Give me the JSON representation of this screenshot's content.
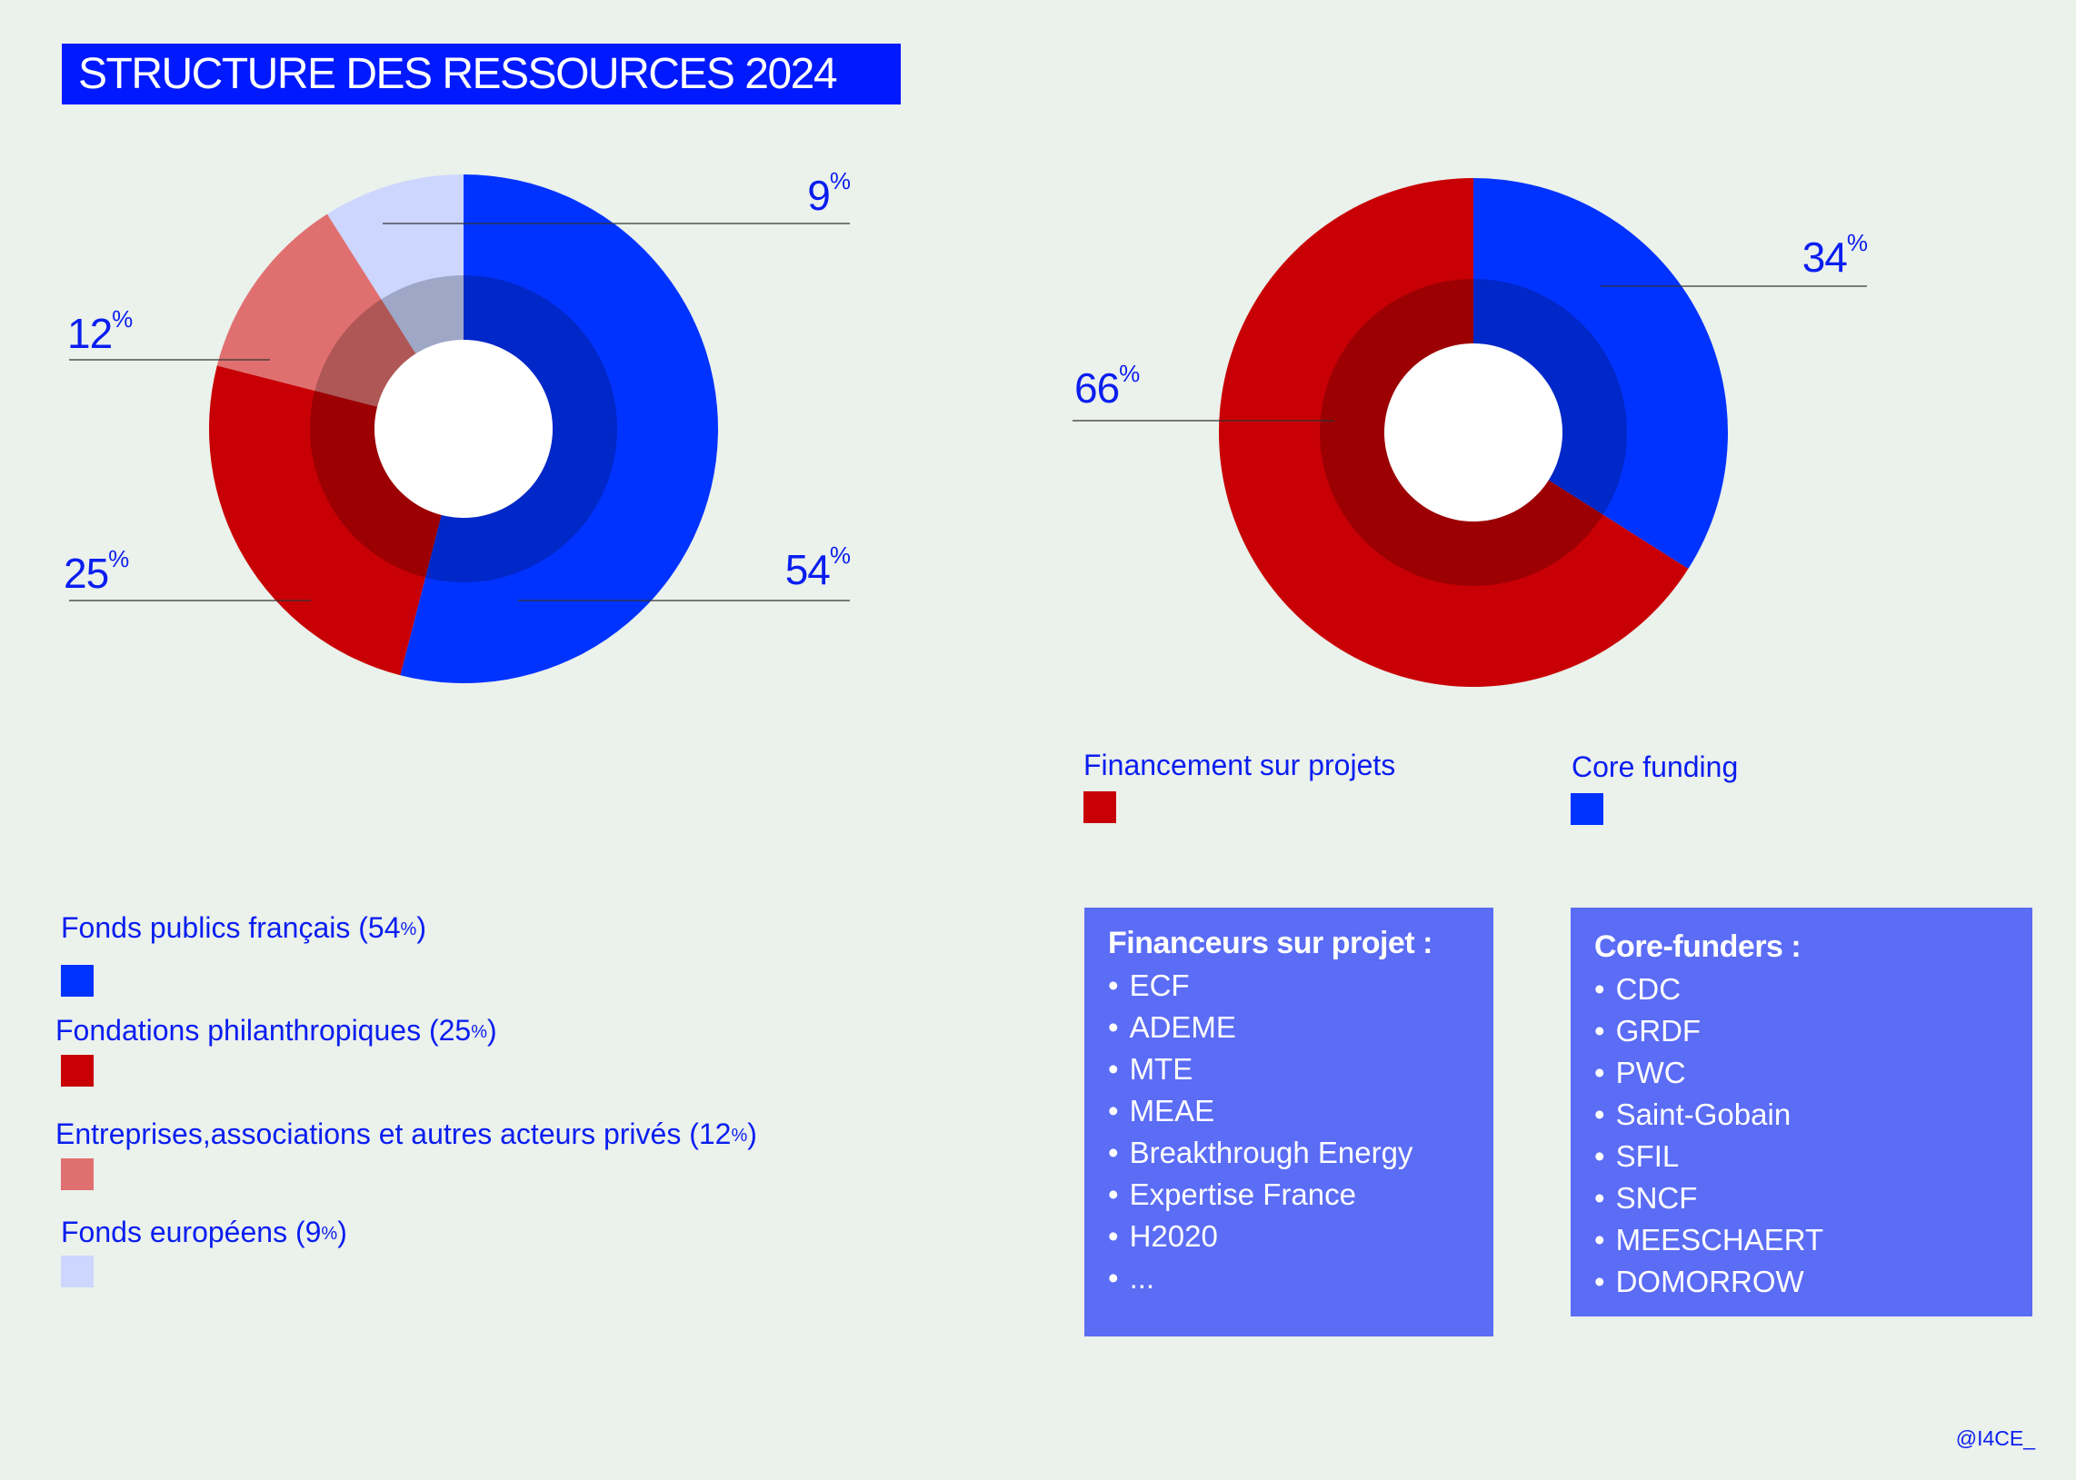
{
  "title": "STRUCTURE DES RESSOURCES 2024",
  "chart_data": [
    {
      "type": "pie",
      "variant": "donut",
      "categories": [
        "Fonds publics français",
        "Fondations philanthropiques",
        "Entreprises,associations et autres acteurs privés",
        "Fonds européens"
      ],
      "values": [
        54,
        25,
        12,
        9
      ],
      "colors": [
        "#0033ff",
        "#c80005",
        "#e07070",
        "#ccd6ff"
      ],
      "data_labels": [
        "54",
        "25",
        "12",
        "9"
      ],
      "unit": "%",
      "legend": [
        {
          "label": "Fonds publics français",
          "value": "(54",
          "unit": "%",
          "close": ")"
        },
        {
          "label": "Fondations philanthropiques",
          "value": "(25",
          "unit": "%",
          "close": ")"
        },
        {
          "label": "Entreprises,associations et autres acteurs privés",
          "value": "(12",
          "unit": "%",
          "close": ")"
        },
        {
          "label": "Fonds européens",
          "value": "(9",
          "unit": "%",
          "close": ")"
        }
      ],
      "legend_position": "bottom-left"
    },
    {
      "type": "pie",
      "variant": "donut",
      "categories": [
        "Core funding",
        "Financement sur projets"
      ],
      "values": [
        34,
        66
      ],
      "colors": [
        "#0033ff",
        "#c80005"
      ],
      "data_labels": [
        "34",
        "66"
      ],
      "unit": "%",
      "legend": [
        {
          "label": "Financement sur projets"
        },
        {
          "label": "Core funding"
        }
      ],
      "legend_position": "bottom"
    }
  ],
  "boxes": [
    {
      "heading": "Financeurs sur projet :",
      "items": [
        "ECF",
        "ADEME",
        "MTE",
        "MEAE",
        "Breakthrough Energy",
        "Expertise France",
        "H2020",
        "..."
      ]
    },
    {
      "heading": "Core-funders :",
      "items": [
        "CDC",
        "GRDF",
        "PWC",
        "Saint-Gobain",
        "SFIL",
        "SNCF",
        "MEESCHAERT",
        "DOMORROW"
      ]
    }
  ],
  "credit": "@I4CE_"
}
